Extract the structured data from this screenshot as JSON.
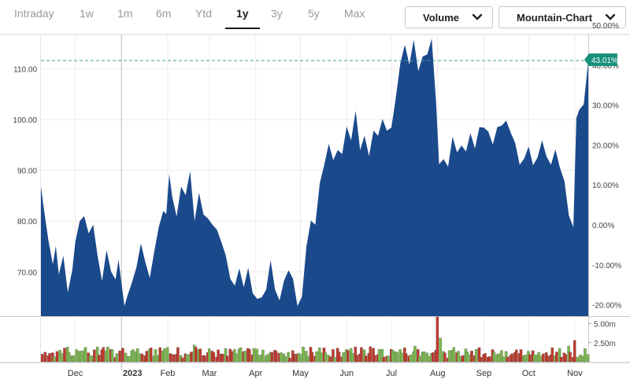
{
  "range_tabs": [
    {
      "label": "Intraday",
      "active": false
    },
    {
      "label": "1w",
      "active": false
    },
    {
      "label": "1m",
      "active": false
    },
    {
      "label": "6m",
      "active": false
    },
    {
      "label": "Ytd",
      "active": false
    },
    {
      "label": "1y",
      "active": true
    },
    {
      "label": "3y",
      "active": false
    },
    {
      "label": "5y",
      "active": false
    },
    {
      "label": "Max",
      "active": false
    }
  ],
  "dropdowns": {
    "volume": {
      "label": "Volume",
      "icon": "chevron-down-icon"
    },
    "chart_type": {
      "label": "Mountain-Chart",
      "icon": "chevron-down-icon"
    }
  },
  "colors": {
    "area_fill": "#1b4a8c",
    "reference_line": "#3a9e97",
    "badge": "#18907a",
    "volume_up": "#7ab84a",
    "volume_down": "#c0392b"
  },
  "chart_data": {
    "type": "area",
    "y_left": {
      "ticks": [
        70,
        80,
        90,
        100,
        110
      ],
      "labels": [
        "70.00",
        "80.00",
        "90.00",
        "100.00",
        "110.00"
      ],
      "range": [
        61.3,
        116.7
      ]
    },
    "y_right": {
      "ticks": [
        50,
        40,
        30,
        20,
        10,
        0,
        -10,
        -20
      ],
      "labels": [
        "50.00%",
        "40.00%",
        "30.00%",
        "20.00%",
        "10.00%",
        "0.00%",
        "-10.00%",
        "-20.00%"
      ]
    },
    "x_axis": {
      "labels": [
        "Dec",
        "2023",
        "Feb",
        "Mar",
        "Apr",
        "May",
        "Jun",
        "Jul",
        "Aug",
        "Sep",
        "Oct",
        "Nov"
      ],
      "label_dates": [
        "2022-12-01",
        "2023-01-01",
        "2023-02-01",
        "2023-03-01",
        "2023-04-01",
        "2023-05-01",
        "2023-06-01",
        "2023-07-01",
        "2023-08-01",
        "2023-09-01",
        "2023-10-01",
        "2023-11-01"
      ],
      "range": [
        "2022-11-08",
        "2023-11-10"
      ]
    },
    "reference_line": {
      "value": 111.6,
      "style": "dashed"
    },
    "current_change_label": "43.01%",
    "price_series": [
      [
        "2022-11-08",
        86.8
      ],
      [
        "2022-11-10",
        82.3
      ],
      [
        "2022-11-13",
        76.2
      ],
      [
        "2022-11-16",
        71.5
      ],
      [
        "2022-11-18",
        75.1
      ],
      [
        "2022-11-20",
        69.5
      ],
      [
        "2022-11-23",
        73.2
      ],
      [
        "2022-11-26",
        66.0
      ],
      [
        "2022-11-29",
        70.4
      ],
      [
        "2022-12-01",
        75.9
      ],
      [
        "2022-12-04",
        80.0
      ],
      [
        "2022-12-07",
        81.0
      ],
      [
        "2022-12-10",
        77.6
      ],
      [
        "2022-12-13",
        79.3
      ],
      [
        "2022-12-16",
        73.1
      ],
      [
        "2022-12-19",
        68.2
      ],
      [
        "2022-12-22",
        74.3
      ],
      [
        "2022-12-25",
        70.1
      ],
      [
        "2022-12-28",
        68.5
      ],
      [
        "2022-12-30",
        72.4
      ],
      [
        "2023-01-03",
        63.3
      ],
      [
        "2023-01-05",
        65.3
      ],
      [
        "2023-01-08",
        67.9
      ],
      [
        "2023-01-11",
        70.9
      ],
      [
        "2023-01-14",
        75.6
      ],
      [
        "2023-01-17",
        71.9
      ],
      [
        "2023-01-20",
        68.8
      ],
      [
        "2023-01-23",
        74.0
      ],
      [
        "2023-01-26",
        78.8
      ],
      [
        "2023-01-29",
        82.0
      ],
      [
        "2023-01-31",
        81.4
      ],
      [
        "2023-02-02",
        89.3
      ],
      [
        "2023-02-04",
        84.9
      ],
      [
        "2023-02-07",
        80.9
      ],
      [
        "2023-02-10",
        86.8
      ],
      [
        "2023-02-13",
        85.1
      ],
      [
        "2023-02-16",
        89.8
      ],
      [
        "2023-02-19",
        80.0
      ],
      [
        "2023-02-22",
        85.6
      ],
      [
        "2023-02-25",
        81.3
      ],
      [
        "2023-02-28",
        80.5
      ],
      [
        "2023-03-03",
        79.3
      ],
      [
        "2023-03-06",
        78.3
      ],
      [
        "2023-03-09",
        75.9
      ],
      [
        "2023-03-12",
        73.2
      ],
      [
        "2023-03-15",
        68.6
      ],
      [
        "2023-03-18",
        67.3
      ],
      [
        "2023-03-21",
        70.7
      ],
      [
        "2023-03-24",
        67.0
      ],
      [
        "2023-03-27",
        70.8
      ],
      [
        "2023-03-30",
        65.8
      ],
      [
        "2023-04-02",
        64.7
      ],
      [
        "2023-04-05",
        65.0
      ],
      [
        "2023-04-08",
        66.5
      ],
      [
        "2023-04-11",
        72.3
      ],
      [
        "2023-04-14",
        66.5
      ],
      [
        "2023-04-17",
        64.4
      ],
      [
        "2023-04-20",
        68.3
      ],
      [
        "2023-04-23",
        70.3
      ],
      [
        "2023-04-26",
        68.7
      ],
      [
        "2023-04-29",
        63.3
      ],
      [
        "2023-05-02",
        65.1
      ],
      [
        "2023-05-05",
        75.0
      ],
      [
        "2023-05-08",
        80.1
      ],
      [
        "2023-05-11",
        79.3
      ],
      [
        "2023-05-14",
        87.5
      ],
      [
        "2023-05-17",
        91.1
      ],
      [
        "2023-05-20",
        95.2
      ],
      [
        "2023-05-23",
        92.0
      ],
      [
        "2023-05-26",
        94.0
      ],
      [
        "2023-05-29",
        93.2
      ],
      [
        "2023-06-01",
        98.6
      ],
      [
        "2023-06-04",
        95.9
      ],
      [
        "2023-06-07",
        101.7
      ],
      [
        "2023-06-10",
        94.0
      ],
      [
        "2023-06-13",
        96.8
      ],
      [
        "2023-06-16",
        92.8
      ],
      [
        "2023-06-19",
        97.8
      ],
      [
        "2023-06-22",
        96.8
      ],
      [
        "2023-06-25",
        100.1
      ],
      [
        "2023-06-28",
        97.8
      ],
      [
        "2023-07-01",
        98.4
      ],
      [
        "2023-07-04",
        104.4
      ],
      [
        "2023-07-07",
        111.1
      ],
      [
        "2023-07-10",
        114.7
      ],
      [
        "2023-07-13",
        110.8
      ],
      [
        "2023-07-16",
        115.7
      ],
      [
        "2023-07-19",
        109.5
      ],
      [
        "2023-07-22",
        112.4
      ],
      [
        "2023-07-25",
        112.8
      ],
      [
        "2023-07-28",
        115.9
      ],
      [
        "2023-07-31",
        103.3
      ],
      [
        "2023-08-02",
        91.2
      ],
      [
        "2023-08-05",
        92.2
      ],
      [
        "2023-08-08",
        90.7
      ],
      [
        "2023-08-11",
        96.6
      ],
      [
        "2023-08-14",
        93.5
      ],
      [
        "2023-08-17",
        94.9
      ],
      [
        "2023-08-20",
        93.7
      ],
      [
        "2023-08-23",
        97.3
      ],
      [
        "2023-08-26",
        94.3
      ],
      [
        "2023-08-29",
        98.5
      ],
      [
        "2023-09-01",
        98.4
      ],
      [
        "2023-09-04",
        97.6
      ],
      [
        "2023-09-07",
        95.1
      ],
      [
        "2023-09-10",
        98.5
      ],
      [
        "2023-09-13",
        98.8
      ],
      [
        "2023-09-16",
        99.8
      ],
      [
        "2023-09-19",
        97.4
      ],
      [
        "2023-09-22",
        95.4
      ],
      [
        "2023-09-25",
        91.1
      ],
      [
        "2023-09-28",
        92.3
      ],
      [
        "2023-10-01",
        94.7
      ],
      [
        "2023-10-04",
        91.0
      ],
      [
        "2023-10-07",
        92.5
      ],
      [
        "2023-10-10",
        95.9
      ],
      [
        "2023-10-13",
        92.7
      ],
      [
        "2023-10-16",
        91.1
      ],
      [
        "2023-10-19",
        94.1
      ],
      [
        "2023-10-22",
        90.5
      ],
      [
        "2023-10-25",
        87.9
      ],
      [
        "2023-10-28",
        81.1
      ],
      [
        "2023-10-31",
        78.8
      ],
      [
        "2023-11-02",
        100.3
      ],
      [
        "2023-11-04",
        101.9
      ],
      [
        "2023-11-07",
        103.0
      ],
      [
        "2023-11-10",
        111.5
      ]
    ],
    "volume_axis": {
      "ticks": [
        5.0,
        2.5
      ],
      "labels": [
        "5.00m",
        "2.50m"
      ],
      "unit": "millions",
      "range": [
        0,
        5.88
      ]
    }
  }
}
